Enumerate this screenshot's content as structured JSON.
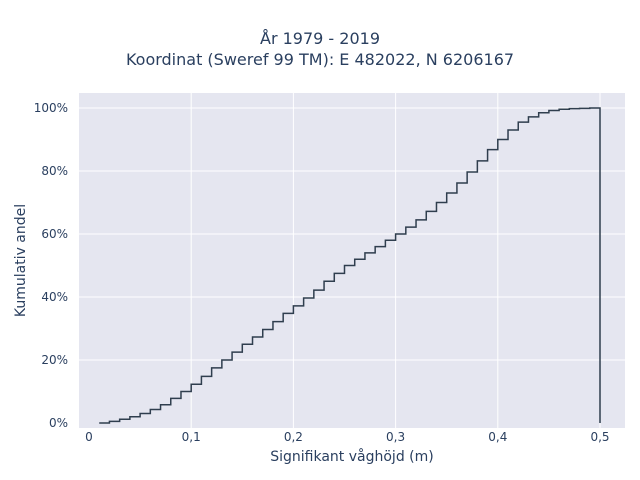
{
  "chart_data": {
    "type": "line",
    "title": "År 1979 - 2019",
    "subtitle": "Koordinat (Sweref 99 TM): E 482022, N 6206167",
    "xlabel": "Signifikant våghöjd (m)",
    "ylabel": "Kumulativ andel",
    "xlim": [
      -0.012,
      0.525
    ],
    "ylim": [
      0,
      1.03
    ],
    "x_ticks": [
      0,
      0.1,
      0.2,
      0.3,
      0.4,
      0.5
    ],
    "x_tick_labels": [
      "0",
      "0,1",
      "0,2",
      "0,3",
      "0,4",
      "0,5"
    ],
    "y_ticks": [
      0,
      0.2,
      0.4,
      0.6,
      0.8,
      1.0
    ],
    "y_tick_labels": [
      "0%",
      "20%",
      "40%",
      "60%",
      "80%",
      "100%"
    ],
    "grid": true,
    "line_shape": "step",
    "series": [
      {
        "x": [
          0.01,
          0.02,
          0.03,
          0.04,
          0.05,
          0.06,
          0.07,
          0.08,
          0.09,
          0.1,
          0.11,
          0.12,
          0.13,
          0.14,
          0.15,
          0.16,
          0.17,
          0.18,
          0.19,
          0.2,
          0.21,
          0.22,
          0.23,
          0.24,
          0.25,
          0.26,
          0.27,
          0.28,
          0.29,
          0.3,
          0.31,
          0.32,
          0.33,
          0.34,
          0.35,
          0.36,
          0.37,
          0.38,
          0.39,
          0.4,
          0.41,
          0.42,
          0.43,
          0.44,
          0.45,
          0.46,
          0.47,
          0.48,
          0.49,
          0.5,
          0.5
        ],
        "y": [
          0.0,
          0.005,
          0.012,
          0.02,
          0.03,
          0.043,
          0.058,
          0.078,
          0.1,
          0.123,
          0.148,
          0.175,
          0.2,
          0.225,
          0.25,
          0.273,
          0.297,
          0.322,
          0.348,
          0.372,
          0.397,
          0.422,
          0.45,
          0.475,
          0.5,
          0.52,
          0.54,
          0.56,
          0.58,
          0.6,
          0.622,
          0.645,
          0.672,
          0.7,
          0.73,
          0.762,
          0.797,
          0.832,
          0.868,
          0.9,
          0.93,
          0.955,
          0.972,
          0.985,
          0.992,
          0.996,
          0.998,
          0.999,
          1.0,
          1.0,
          0.0
        ],
        "color": "#2f3e4e"
      }
    ]
  }
}
